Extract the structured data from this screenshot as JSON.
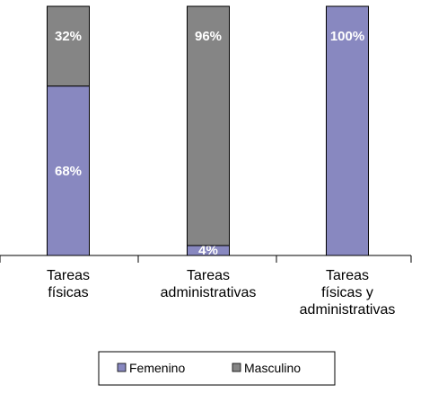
{
  "chart_data": {
    "type": "bar",
    "stacked": true,
    "percent": true,
    "categories": [
      [
        "Tareas",
        "físicas"
      ],
      [
        "Tareas",
        "administrativas"
      ],
      [
        "Tareas",
        "físicas y",
        "administrativas"
      ]
    ],
    "series": [
      {
        "name": "Femenino",
        "color": "#8888c0",
        "values": [
          68,
          4,
          100
        ],
        "labels": [
          "68%",
          "4%",
          "100%"
        ]
      },
      {
        "name": "Masculino",
        "color": "#858585",
        "values": [
          32,
          96,
          0
        ],
        "labels": [
          "32%",
          "96%",
          ""
        ]
      }
    ],
    "ylim": [
      0,
      100
    ],
    "grid": false,
    "legend_position": "bottom"
  }
}
